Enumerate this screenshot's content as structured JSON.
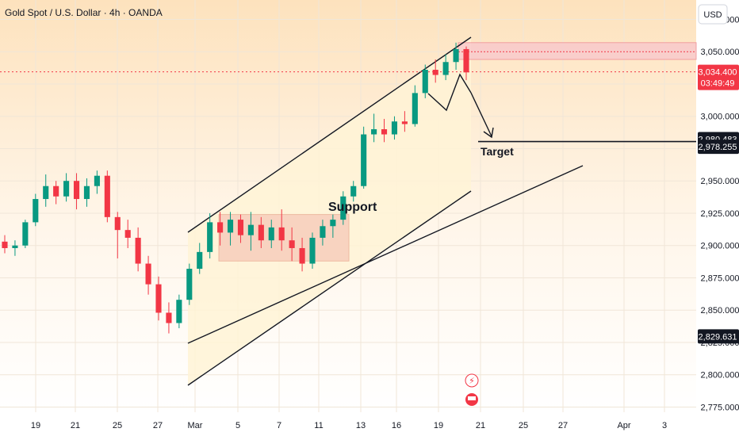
{
  "chart_data": {
    "type": "candlestick",
    "title": "Gold Spot / U.S. Dollar · 4h · OANDA",
    "currency_label": "USD",
    "y_ticks": [
      2775,
      2800,
      2825,
      2850,
      2875,
      2900,
      2925,
      2950,
      2975,
      3000,
      3025,
      3050,
      3075
    ],
    "y_tick_labels": [
      "2,775.000",
      "2,800.000",
      "2,825.000",
      "2,850.000",
      "2,875.000",
      "2,900.000",
      "2,925.000",
      "2,950.000",
      "2,975.000",
      "3,000.000",
      "3,025.000",
      "3,050.000",
      "3,075.000"
    ],
    "ylim": [
      2771,
      3090
    ],
    "x_tick_labels": [
      "19",
      "21",
      "25",
      "27",
      "Mar",
      "5",
      "7",
      "11",
      "13",
      "16",
      "19",
      "21",
      "25",
      "27",
      "Apr",
      "3"
    ],
    "price_marks": [
      {
        "label": "3,034.400",
        "sublabel": "03:49:49",
        "value": 3034.4,
        "color": "#f23645"
      },
      {
        "label": "2,980.483",
        "value": 2980.483,
        "color": "#131722"
      },
      {
        "label": "2,978.255",
        "value": 2978.255,
        "color": "#131722"
      },
      {
        "label": "2,829.631",
        "value": 2829.631,
        "color": "#131722"
      }
    ],
    "annotations": {
      "support": "Support",
      "target": "Target"
    },
    "colors": {
      "up": "#089981",
      "down": "#f23645",
      "channel_fill": "#fff3d6",
      "box_fill": "#f6c9b8",
      "resistance_fill": "#f9c8cc",
      "bg_gradient_top": "#fde6c6"
    },
    "series": [
      {
        "t": "Feb 18",
        "o": 2903,
        "h": 2908,
        "l": 2894,
        "c": 2898
      },
      {
        "t": "Feb 18",
        "o": 2898,
        "h": 2904,
        "l": 2892,
        "c": 2900
      },
      {
        "t": "Feb 19",
        "o": 2900,
        "h": 2920,
        "l": 2898,
        "c": 2918
      },
      {
        "t": "Feb 19",
        "o": 2918,
        "h": 2940,
        "l": 2915,
        "c": 2936
      },
      {
        "t": "Feb 20",
        "o": 2936,
        "h": 2955,
        "l": 2930,
        "c": 2946
      },
      {
        "t": "Feb 20",
        "o": 2946,
        "h": 2950,
        "l": 2932,
        "c": 2938
      },
      {
        "t": "Feb 21",
        "o": 2938,
        "h": 2956,
        "l": 2934,
        "c": 2950
      },
      {
        "t": "Feb 21",
        "o": 2950,
        "h": 2956,
        "l": 2928,
        "c": 2936
      },
      {
        "t": "Feb 24",
        "o": 2936,
        "h": 2952,
        "l": 2930,
        "c": 2946
      },
      {
        "t": "Feb 24",
        "o": 2946,
        "h": 2958,
        "l": 2940,
        "c": 2954
      },
      {
        "t": "Feb 25",
        "o": 2954,
        "h": 2958,
        "l": 2918,
        "c": 2922
      },
      {
        "t": "Feb 25",
        "o": 2922,
        "h": 2926,
        "l": 2890,
        "c": 2912
      },
      {
        "t": "Feb 26",
        "o": 2912,
        "h": 2920,
        "l": 2898,
        "c": 2906
      },
      {
        "t": "Feb 26",
        "o": 2906,
        "h": 2914,
        "l": 2880,
        "c": 2886
      },
      {
        "t": "Feb 27",
        "o": 2886,
        "h": 2892,
        "l": 2862,
        "c": 2870
      },
      {
        "t": "Feb 27",
        "o": 2870,
        "h": 2876,
        "l": 2842,
        "c": 2848
      },
      {
        "t": "Feb 28",
        "o": 2848,
        "h": 2856,
        "l": 2832,
        "c": 2840
      },
      {
        "t": "Feb 28",
        "o": 2840,
        "h": 2862,
        "l": 2836,
        "c": 2858
      },
      {
        "t": "Mar 3",
        "o": 2858,
        "h": 2886,
        "l": 2854,
        "c": 2882
      },
      {
        "t": "Mar 3",
        "o": 2882,
        "h": 2902,
        "l": 2878,
        "c": 2895
      },
      {
        "t": "Mar 4",
        "o": 2895,
        "h": 2925,
        "l": 2890,
        "c": 2918
      },
      {
        "t": "Mar 4",
        "o": 2918,
        "h": 2926,
        "l": 2900,
        "c": 2910
      },
      {
        "t": "Mar 5",
        "o": 2910,
        "h": 2926,
        "l": 2900,
        "c": 2920
      },
      {
        "t": "Mar 5",
        "o": 2920,
        "h": 2924,
        "l": 2902,
        "c": 2908
      },
      {
        "t": "Mar 6",
        "o": 2908,
        "h": 2926,
        "l": 2896,
        "c": 2916
      },
      {
        "t": "Mar 6",
        "o": 2916,
        "h": 2922,
        "l": 2898,
        "c": 2904
      },
      {
        "t": "Mar 7",
        "o": 2904,
        "h": 2920,
        "l": 2898,
        "c": 2914
      },
      {
        "t": "Mar 7",
        "o": 2914,
        "h": 2928,
        "l": 2896,
        "c": 2904
      },
      {
        "t": "Mar 10",
        "o": 2904,
        "h": 2914,
        "l": 2888,
        "c": 2898
      },
      {
        "t": "Mar 10",
        "o": 2898,
        "h": 2906,
        "l": 2880,
        "c": 2886
      },
      {
        "t": "Mar 11",
        "o": 2886,
        "h": 2910,
        "l": 2882,
        "c": 2906
      },
      {
        "t": "Mar 11",
        "o": 2906,
        "h": 2920,
        "l": 2900,
        "c": 2915
      },
      {
        "t": "Mar 12",
        "o": 2915,
        "h": 2924,
        "l": 2906,
        "c": 2920
      },
      {
        "t": "Mar 12",
        "o": 2920,
        "h": 2942,
        "l": 2916,
        "c": 2938
      },
      {
        "t": "Mar 13",
        "o": 2938,
        "h": 2950,
        "l": 2934,
        "c": 2946
      },
      {
        "t": "Mar 13",
        "o": 2946,
        "h": 2992,
        "l": 2944,
        "c": 2986
      },
      {
        "t": "Mar 14",
        "o": 2986,
        "h": 3002,
        "l": 2980,
        "c": 2990
      },
      {
        "t": "Mar 14",
        "o": 2990,
        "h": 2998,
        "l": 2980,
        "c": 2986
      },
      {
        "t": "Mar 17",
        "o": 2986,
        "h": 3000,
        "l": 2982,
        "c": 2996
      },
      {
        "t": "Mar 17",
        "o": 2996,
        "h": 3004,
        "l": 2988,
        "c": 2994
      },
      {
        "t": "Mar 18",
        "o": 2994,
        "h": 3024,
        "l": 2992,
        "c": 3018
      },
      {
        "t": "Mar 18",
        "o": 3018,
        "h": 3040,
        "l": 3014,
        "c": 3036
      },
      {
        "t": "Mar 19",
        "o": 3036,
        "h": 3044,
        "l": 3026,
        "c": 3032
      },
      {
        "t": "Mar 19",
        "o": 3032,
        "h": 3048,
        "l": 3028,
        "c": 3042
      },
      {
        "t": "Mar 20",
        "o": 3042,
        "h": 3057,
        "l": 3036,
        "c": 3052
      },
      {
        "t": "Mar 20",
        "o": 3052,
        "h": 3054,
        "l": 3028,
        "c": 3034
      }
    ]
  }
}
